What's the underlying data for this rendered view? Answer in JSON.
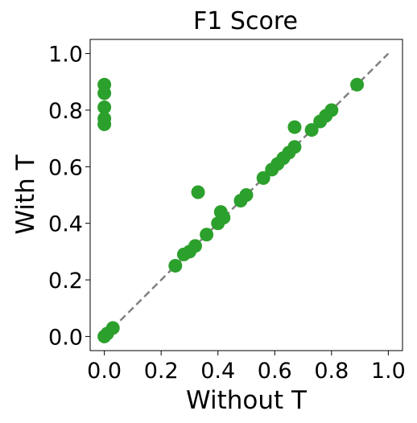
{
  "chart_data": {
    "type": "scatter",
    "title": "F1 Score",
    "xlabel": "Without T",
    "ylabel": "With T",
    "xlim": [
      -0.05,
      1.05
    ],
    "ylim": [
      -0.05,
      1.05
    ],
    "xticks": [
      0.0,
      0.2,
      0.4,
      0.6,
      0.8,
      1.0
    ],
    "yticks": [
      0.0,
      0.2,
      0.4,
      0.6,
      0.8,
      1.0
    ],
    "tick_labels": [
      "0.0",
      "0.2",
      "0.4",
      "0.6",
      "0.8",
      "1.0"
    ],
    "grid": false,
    "reference_line": {
      "style": "dashed",
      "color": "#808080",
      "from": [
        0.0,
        0.0
      ],
      "to": [
        1.0,
        1.0
      ]
    },
    "point_color": "#2ca02c",
    "points": [
      {
        "x": 0.0,
        "y": 0.89
      },
      {
        "x": 0.0,
        "y": 0.86
      },
      {
        "x": 0.0,
        "y": 0.81
      },
      {
        "x": 0.0,
        "y": 0.77
      },
      {
        "x": 0.0,
        "y": 0.75
      },
      {
        "x": 0.0,
        "y": 0.0
      },
      {
        "x": 0.01,
        "y": 0.01
      },
      {
        "x": 0.03,
        "y": 0.03
      },
      {
        "x": 0.25,
        "y": 0.25
      },
      {
        "x": 0.28,
        "y": 0.29
      },
      {
        "x": 0.3,
        "y": 0.3
      },
      {
        "x": 0.32,
        "y": 0.32
      },
      {
        "x": 0.33,
        "y": 0.51
      },
      {
        "x": 0.36,
        "y": 0.36
      },
      {
        "x": 0.4,
        "y": 0.4
      },
      {
        "x": 0.41,
        "y": 0.44
      },
      {
        "x": 0.42,
        "y": 0.42
      },
      {
        "x": 0.48,
        "y": 0.48
      },
      {
        "x": 0.5,
        "y": 0.5
      },
      {
        "x": 0.56,
        "y": 0.56
      },
      {
        "x": 0.59,
        "y": 0.59
      },
      {
        "x": 0.61,
        "y": 0.61
      },
      {
        "x": 0.63,
        "y": 0.63
      },
      {
        "x": 0.65,
        "y": 0.65
      },
      {
        "x": 0.67,
        "y": 0.67
      },
      {
        "x": 0.67,
        "y": 0.74
      },
      {
        "x": 0.73,
        "y": 0.73
      },
      {
        "x": 0.76,
        "y": 0.76
      },
      {
        "x": 0.78,
        "y": 0.78
      },
      {
        "x": 0.8,
        "y": 0.8
      },
      {
        "x": 0.89,
        "y": 0.89
      }
    ]
  }
}
